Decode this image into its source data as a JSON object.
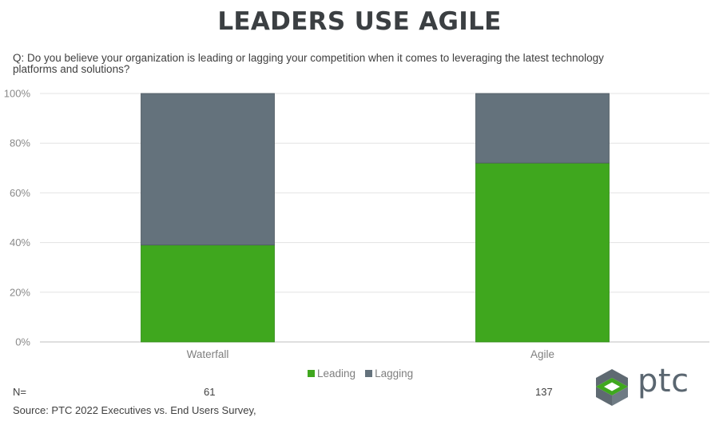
{
  "title": "LEADERS USE AGILE",
  "question": "Q: Do you believe your organization is leading or lagging your competition when it comes to leveraging the latest technology platforms and solutions?",
  "chart_data": {
    "type": "bar",
    "stacked": true,
    "categories": [
      "Waterfall",
      "Agile"
    ],
    "series": [
      {
        "name": "Leading",
        "color": "#3fa71e",
        "values": [
          39,
          72
        ]
      },
      {
        "name": "Lagging",
        "color": "#64727c",
        "values": [
          61,
          28
        ]
      }
    ],
    "ylim": [
      0,
      100
    ],
    "yticks": [
      "0%",
      "20%",
      "40%",
      "60%",
      "80%",
      "100%"
    ],
    "legend_position": "bottom"
  },
  "n_label": "N=",
  "n_values": [
    "61",
    "137"
  ],
  "source": "Source: PTC 2022 Executives vs. End Users Survey,",
  "logo": {
    "text": "ptc",
    "icon": "ptc-logo-icon"
  }
}
